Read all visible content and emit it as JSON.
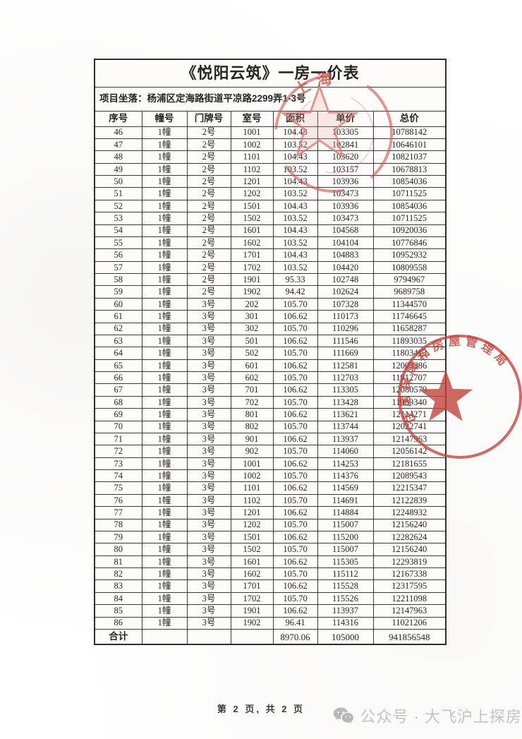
{
  "document": {
    "title": "《悦阳云筑》一房一价表",
    "location_label": "项目坐落：",
    "location_value": "杨浦区定海路街道平凉路2299弄1-3号",
    "page_footer": "第 2 页, 共 2 页",
    "watermark_text": "公众号 · 大飞沪上探房",
    "watermark_icon": "wechat-icon"
  },
  "table": {
    "headers": [
      "序号",
      "幢号",
      "门牌号",
      "室号",
      "面积",
      "单价",
      "总价"
    ],
    "rows": [
      [
        "46",
        "1幢",
        "2号",
        "1001",
        "104.43",
        "103305",
        "10788142"
      ],
      [
        "47",
        "1幢",
        "2号",
        "1002",
        "103.52",
        "102841",
        "10646101"
      ],
      [
        "48",
        "1幢",
        "2号",
        "1101",
        "104.43",
        "103620",
        "10821037"
      ],
      [
        "49",
        "1幢",
        "2号",
        "1102",
        "103.52",
        "103157",
        "10678813"
      ],
      [
        "50",
        "1幢",
        "2号",
        "1201",
        "104.43",
        "103936",
        "10854036"
      ],
      [
        "51",
        "1幢",
        "2号",
        "1202",
        "103.52",
        "103473",
        "10711525"
      ],
      [
        "52",
        "1幢",
        "2号",
        "1501",
        "104.43",
        "103936",
        "10854036"
      ],
      [
        "53",
        "1幢",
        "2号",
        "1502",
        "103.52",
        "103473",
        "10711525"
      ],
      [
        "54",
        "1幢",
        "2号",
        "1601",
        "104.43",
        "104568",
        "10920036"
      ],
      [
        "55",
        "1幢",
        "2号",
        "1602",
        "103.52",
        "104104",
        "10776846"
      ],
      [
        "56",
        "1幢",
        "2号",
        "1701",
        "104.43",
        "104883",
        "10952932"
      ],
      [
        "57",
        "1幢",
        "2号",
        "1702",
        "103.52",
        "104420",
        "10809558"
      ],
      [
        "58",
        "1幢",
        "2号",
        "1901",
        "95.33",
        "102748",
        "9794967"
      ],
      [
        "59",
        "1幢",
        "2号",
        "1902",
        "94.42",
        "102624",
        "9689758"
      ],
      [
        "60",
        "1幢",
        "3号",
        "202",
        "105.70",
        "107328",
        "11344570"
      ],
      [
        "61",
        "1幢",
        "3号",
        "301",
        "106.62",
        "110173",
        "11746645"
      ],
      [
        "62",
        "1幢",
        "3号",
        "302",
        "105.70",
        "110296",
        "11658287"
      ],
      [
        "63",
        "1幢",
        "3号",
        "501",
        "106.62",
        "111546",
        "11893035"
      ],
      [
        "64",
        "1幢",
        "3号",
        "502",
        "105.70",
        "111669",
        "11803413"
      ],
      [
        "65",
        "1幢",
        "3号",
        "601",
        "106.62",
        "112581",
        "12003386"
      ],
      [
        "66",
        "1幢",
        "3号",
        "602",
        "105.70",
        "112703",
        "11912707"
      ],
      [
        "67",
        "1幢",
        "3号",
        "701",
        "106.62",
        "113305",
        "12080579"
      ],
      [
        "68",
        "1幢",
        "3号",
        "702",
        "105.70",
        "113428",
        "11989340"
      ],
      [
        "69",
        "1幢",
        "3号",
        "801",
        "106.62",
        "113621",
        "12114271"
      ],
      [
        "70",
        "1幢",
        "3号",
        "802",
        "105.70",
        "113744",
        "12022741"
      ],
      [
        "71",
        "1幢",
        "3号",
        "901",
        "106.62",
        "113937",
        "12147963"
      ],
      [
        "72",
        "1幢",
        "3号",
        "902",
        "105.70",
        "114060",
        "12056142"
      ],
      [
        "73",
        "1幢",
        "3号",
        "1001",
        "106.62",
        "114253",
        "12181655"
      ],
      [
        "74",
        "1幢",
        "3号",
        "1002",
        "105.70",
        "114376",
        "12089543"
      ],
      [
        "75",
        "1幢",
        "3号",
        "1101",
        "106.62",
        "114569",
        "12215347"
      ],
      [
        "76",
        "1幢",
        "3号",
        "1102",
        "105.70",
        "114691",
        "12122839"
      ],
      [
        "77",
        "1幢",
        "3号",
        "1201",
        "106.62",
        "114884",
        "12248932"
      ],
      [
        "78",
        "1幢",
        "3号",
        "1202",
        "105.70",
        "115007",
        "12156240"
      ],
      [
        "79",
        "1幢",
        "3号",
        "1501",
        "106.62",
        "115200",
        "12282624"
      ],
      [
        "80",
        "1幢",
        "3号",
        "1502",
        "105.70",
        "115007",
        "12156240"
      ],
      [
        "81",
        "1幢",
        "3号",
        "1601",
        "106.62",
        "115305",
        "12293819"
      ],
      [
        "82",
        "1幢",
        "3号",
        "1602",
        "105.70",
        "115112",
        "12167338"
      ],
      [
        "83",
        "1幢",
        "3号",
        "1701",
        "106.62",
        "115528",
        "12317595"
      ],
      [
        "84",
        "1幢",
        "3号",
        "1702",
        "105.70",
        "115526",
        "12211098"
      ],
      [
        "85",
        "1幢",
        "3号",
        "1901",
        "106.62",
        "113937",
        "12147963"
      ],
      [
        "86",
        "1幢",
        "3号",
        "1902",
        "96.41",
        "114316",
        "11021206"
      ]
    ],
    "total_row": [
      "合计",
      "",
      "",
      "",
      "8970.06",
      "105000",
      "941856548"
    ]
  },
  "stamps": {
    "color": "#c0433c",
    "top": {
      "arc_text": "上海"
    },
    "right": {
      "arc_text": "住房保障和房屋管理局"
    }
  }
}
